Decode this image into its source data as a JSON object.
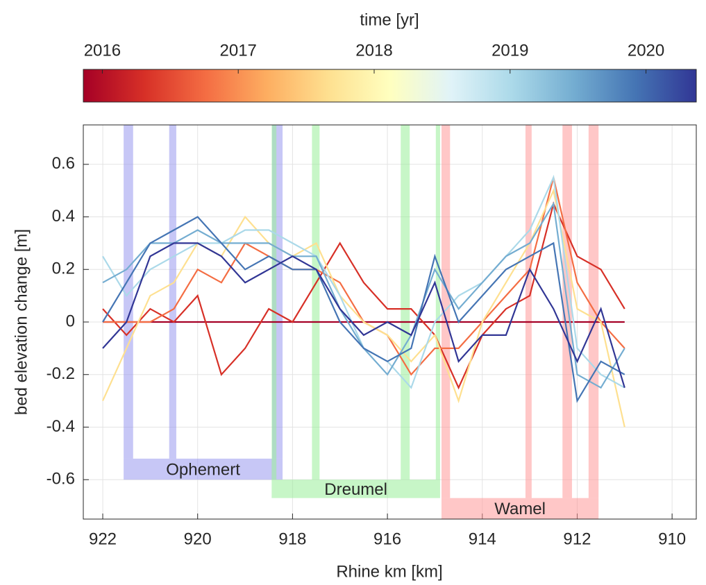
{
  "chart_data": {
    "type": "line",
    "colorbar": {
      "label": "time [yr]",
      "clim": [
        2015.86,
        2020.37
      ],
      "ticks": [
        2016,
        2017,
        2018,
        2019,
        2020
      ],
      "colormap": [
        "#a50026",
        "#d73027",
        "#f46d43",
        "#fdae61",
        "#fee090",
        "#ffffbf",
        "#e0f3f8",
        "#abd9e9",
        "#74add1",
        "#4575b4",
        "#313695"
      ]
    },
    "x_label": "Rhine km [km]",
    "y_label": "bed elevation change [m]",
    "xlim": [
      922.41,
      909.49
    ],
    "xticks": [
      922,
      920,
      918,
      916,
      914,
      912,
      910
    ],
    "ylim": [
      -0.75,
      0.75
    ],
    "yticks": [
      -0.6,
      -0.4,
      -0.2,
      0,
      0.2,
      0.4,
      0.6
    ],
    "grid": true,
    "x": [
      922,
      921.5,
      921,
      920.5,
      920,
      919.5,
      919,
      918.5,
      918,
      917.5,
      917,
      916.5,
      916,
      915.5,
      915,
      914.5,
      914,
      913.5,
      913,
      912.5,
      912,
      911.5,
      911
    ],
    "series": [
      {
        "time": 2016.0,
        "color": "#a50026",
        "values": [
          0,
          0,
          0,
          0,
          0,
          0,
          0,
          0,
          0,
          0,
          0,
          0,
          0,
          0,
          0,
          0,
          0,
          0,
          0,
          0,
          0,
          0,
          0
        ]
      },
      {
        "time": 2016.5,
        "color": "#d73027",
        "values": [
          0.05,
          -0.05,
          0.05,
          0,
          0.1,
          -0.2,
          -0.1,
          0.05,
          0,
          0.15,
          0.3,
          0.15,
          0.05,
          0.05,
          -0.05,
          -0.25,
          -0.05,
          0.05,
          0.1,
          0.45,
          0.25,
          0.2,
          0.05
        ]
      },
      {
        "time": 2017.0,
        "color": "#f46d43",
        "values": [
          0,
          0,
          0,
          0.05,
          0.2,
          0.15,
          0.3,
          0.25,
          0.2,
          0.2,
          0.15,
          0,
          -0.05,
          -0.2,
          -0.1,
          -0.1,
          0,
          0.1,
          0.2,
          0.55,
          0.15,
          0,
          -0.1
        ]
      },
      {
        "time": 2017.8,
        "color": "#fee090",
        "values": [
          -0.3,
          -0.1,
          0.1,
          0.15,
          0.3,
          0.25,
          0.4,
          0.3,
          0.25,
          0.3,
          0.1,
          0,
          -0.05,
          -0.15,
          -0.05,
          -0.3,
          0,
          0.15,
          0.3,
          0.5,
          0.05,
          0,
          -0.4
        ]
      },
      {
        "time": 2018.5,
        "color": "#abd9e9",
        "values": [
          0.25,
          0.1,
          0.2,
          0.25,
          0.3,
          0.3,
          0.35,
          0.35,
          0.3,
          0.25,
          0.1,
          -0.1,
          -0.15,
          -0.25,
          0,
          0.1,
          0.15,
          0.25,
          0.35,
          0.55,
          -0.1,
          -0.2,
          -0.25
        ]
      },
      {
        "time": 2019.2,
        "color": "#74add1",
        "values": [
          0.15,
          0.2,
          0.3,
          0.3,
          0.35,
          0.3,
          0.3,
          0.3,
          0.25,
          0.25,
          0.05,
          -0.1,
          -0.2,
          -0.05,
          0.2,
          0.05,
          0.15,
          0.25,
          0.3,
          0.45,
          -0.2,
          -0.25,
          -0.1
        ]
      },
      {
        "time": 2019.8,
        "color": "#4575b4",
        "values": [
          0,
          0.15,
          0.3,
          0.35,
          0.4,
          0.3,
          0.2,
          0.25,
          0.2,
          0.2,
          0,
          -0.1,
          -0.15,
          -0.1,
          0.25,
          0,
          0.1,
          0.2,
          0.25,
          0.3,
          -0.3,
          -0.15,
          -0.2
        ]
      },
      {
        "time": 2020.3,
        "color": "#313695",
        "values": [
          -0.1,
          0,
          0.25,
          0.3,
          0.3,
          0.25,
          0.15,
          0.2,
          0.25,
          0.2,
          0.05,
          -0.05,
          0,
          -0.05,
          0.15,
          -0.15,
          -0.05,
          -0.05,
          0.2,
          0.05,
          -0.15,
          0.05,
          -0.25
        ]
      }
    ],
    "regions": [
      {
        "label": "Ophemert",
        "color": "#9999ee",
        "bands": [
          [
            921.56,
            921.36
          ],
          [
            920.6,
            920.45
          ],
          [
            918.43,
            918.21
          ]
        ],
        "span": [
          921.56,
          918.21
        ],
        "ybox": [
          -0.6,
          -0.52
        ]
      },
      {
        "label": "Dreumel",
        "color": "#99ee99",
        "bands": [
          [
            918.44,
            918.34
          ],
          [
            917.59,
            917.43
          ],
          [
            915.72,
            915.53
          ],
          [
            914.98,
            914.89
          ]
        ],
        "span": [
          918.44,
          914.89
        ],
        "ybox": [
          -0.67,
          -0.6
        ]
      },
      {
        "label": "Wamel",
        "color": "#ff9999",
        "bands": [
          [
            914.86,
            914.68
          ],
          [
            913.09,
            912.96
          ],
          [
            912.31,
            912.11
          ],
          [
            911.76,
            911.55
          ]
        ],
        "span": [
          914.86,
          911.55
        ],
        "ybox": [
          -0.75,
          -0.67
        ]
      }
    ]
  }
}
